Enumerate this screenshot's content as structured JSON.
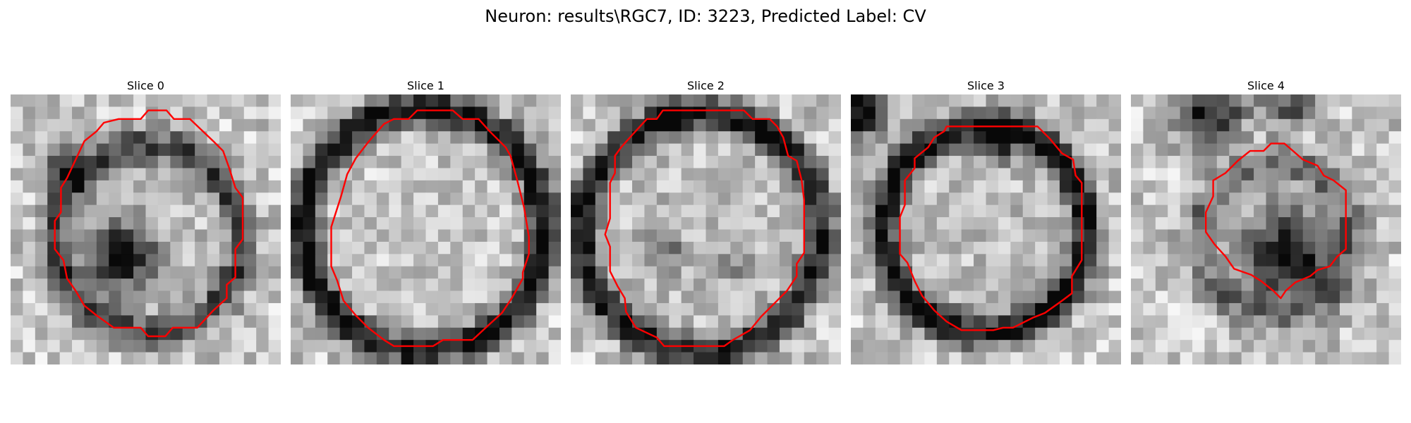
{
  "figure": {
    "title": "Neuron: results\\RGC7, ID: 3223, Predicted Label: CV"
  },
  "panels": [
    {
      "title": "Slice 0"
    },
    {
      "title": "Slice 1"
    },
    {
      "title": "Slice 2"
    },
    {
      "title": "Slice 3"
    },
    {
      "title": "Slice 4"
    }
  ],
  "style": {
    "contour_color": "#ff0000",
    "colormap": "grayscale"
  }
}
